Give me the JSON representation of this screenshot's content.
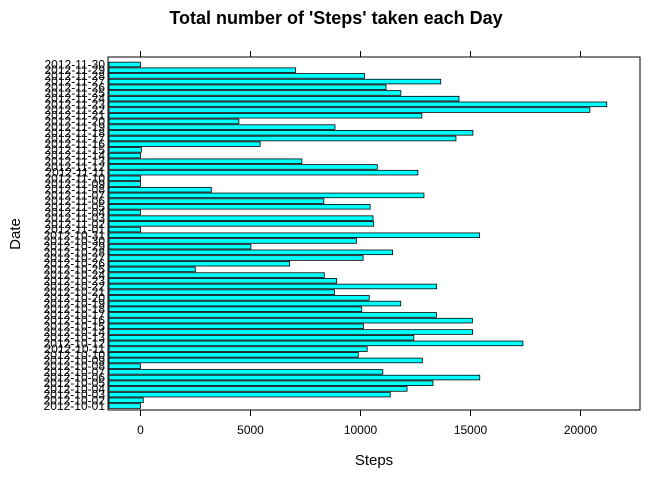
{
  "chart_data": {
    "type": "bar",
    "orientation": "horizontal",
    "title": "Total number of 'Steps' taken each Day",
    "xlabel": "Steps",
    "ylabel": "Date",
    "xlim": [
      0,
      22500
    ],
    "xticks": [
      "0",
      "5000",
      "10000",
      "15000",
      "20000"
    ],
    "grid": false,
    "bar_color": "#00FFFF",
    "bar_edge_color": "#000000",
    "categories": [
      "2012-10-01",
      "2012-10-02",
      "2012-10-03",
      "2012-10-04",
      "2012-10-05",
      "2012-10-06",
      "2012-10-07",
      "2012-10-08",
      "2012-10-09",
      "2012-10-10",
      "2012-10-11",
      "2012-10-12",
      "2012-10-13",
      "2012-10-14",
      "2012-10-15",
      "2012-10-16",
      "2012-10-17",
      "2012-10-18",
      "2012-10-19",
      "2012-10-20",
      "2012-10-21",
      "2012-10-22",
      "2012-10-23",
      "2012-10-24",
      "2012-10-25",
      "2012-10-26",
      "2012-10-27",
      "2012-10-28",
      "2012-10-29",
      "2012-10-30",
      "2012-10-31",
      "2012-11-01",
      "2012-11-02",
      "2012-11-03",
      "2012-11-04",
      "2012-11-05",
      "2012-11-06",
      "2012-11-07",
      "2012-11-08",
      "2012-11-09",
      "2012-11-10",
      "2012-11-11",
      "2012-11-12",
      "2012-11-13",
      "2012-11-14",
      "2012-11-15",
      "2012-11-16",
      "2012-11-17",
      "2012-11-18",
      "2012-11-19",
      "2012-11-20",
      "2012-11-21",
      "2012-11-22",
      "2012-11-23",
      "2012-11-24",
      "2012-11-25",
      "2012-11-26",
      "2012-11-27",
      "2012-11-28",
      "2012-11-29",
      "2012-11-30"
    ],
    "values": [
      0,
      126,
      11352,
      12116,
      13294,
      15420,
      11015,
      0,
      12811,
      9900,
      10304,
      17382,
      12426,
      15098,
      10139,
      15084,
      13452,
      10056,
      11829,
      10395,
      8821,
      13460,
      8918,
      8355,
      2492,
      6778,
      10119,
      11458,
      5018,
      9819,
      15414,
      0,
      10600,
      10571,
      0,
      10439,
      8334,
      12883,
      3219,
      0,
      0,
      12608,
      10765,
      7336,
      0,
      41,
      5441,
      14339,
      15110,
      8841,
      4472,
      12787,
      20427,
      21194,
      14478,
      11834,
      11162,
      13646,
      10183,
      7047,
      0
    ]
  }
}
